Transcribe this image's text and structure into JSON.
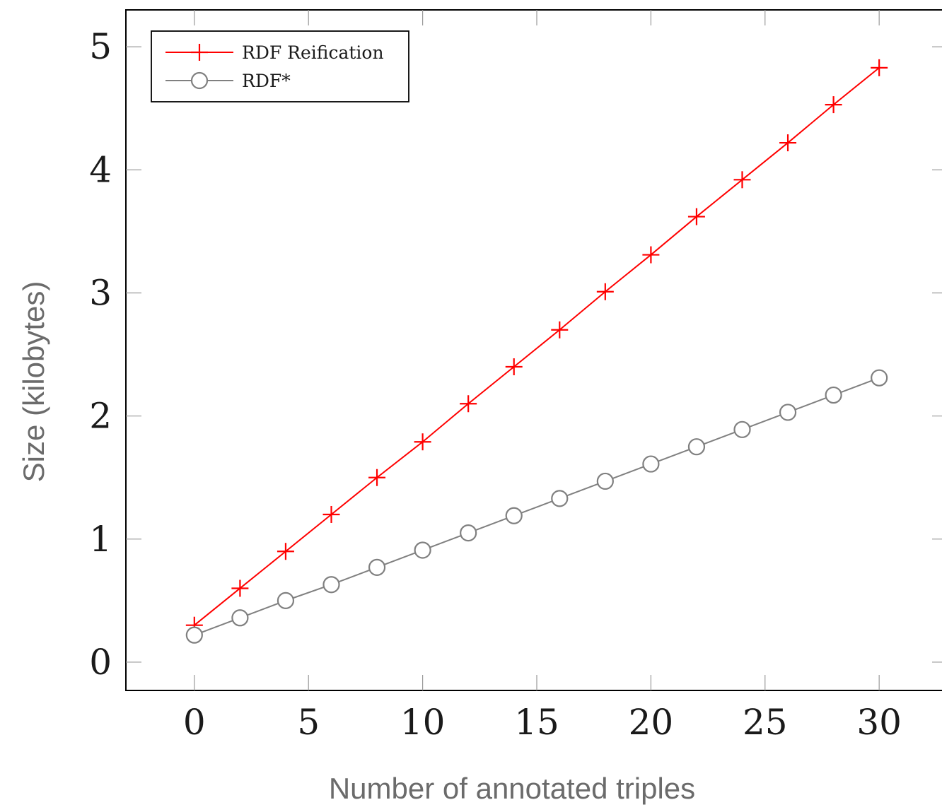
{
  "chart_data": {
    "type": "line",
    "title": "",
    "xlabel": "Number of annotated triples",
    "ylabel": "Size (kilobytes)",
    "xlim": [
      -3,
      33
    ],
    "ylim": [
      -0.23,
      5.3
    ],
    "xticks": [
      0,
      5,
      10,
      15,
      20,
      25,
      30
    ],
    "yticks": [
      0,
      1,
      2,
      3,
      4,
      5
    ],
    "xtick_labels": [
      "0",
      "5",
      "10",
      "15",
      "20",
      "25",
      "30"
    ],
    "ytick_labels": [
      "0",
      "1",
      "2",
      "3",
      "4",
      "5"
    ],
    "grid": false,
    "legend_position": "top-left",
    "series": [
      {
        "name": "RDF Reification",
        "color": "#ff0000",
        "marker": "plus",
        "x": [
          0,
          2,
          4,
          6,
          8,
          10,
          12,
          14,
          16,
          18,
          20,
          22,
          24,
          26,
          28,
          30
        ],
        "y": [
          0.3,
          0.6,
          0.9,
          1.2,
          1.5,
          1.79,
          2.1,
          2.4,
          2.7,
          3.01,
          3.31,
          3.62,
          3.92,
          4.22,
          4.53,
          4.83
        ]
      },
      {
        "name": "RDF*",
        "color": "#808080",
        "marker": "circle",
        "x": [
          0,
          2,
          4,
          6,
          8,
          10,
          12,
          14,
          16,
          18,
          20,
          22,
          24,
          26,
          28,
          30
        ],
        "y": [
          0.22,
          0.36,
          0.5,
          0.63,
          0.77,
          0.91,
          1.05,
          1.19,
          1.33,
          1.47,
          1.61,
          1.75,
          1.89,
          2.03,
          2.17,
          2.31
        ]
      }
    ]
  }
}
